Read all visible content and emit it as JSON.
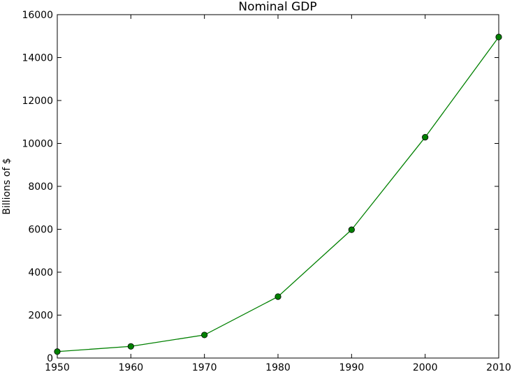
{
  "chart_data": {
    "type": "line",
    "title": "Nominal GDP",
    "xlabel": "",
    "ylabel": "Billions of $",
    "x": [
      1950,
      1960,
      1970,
      1980,
      1990,
      2000,
      2010
    ],
    "series": [
      {
        "values": [
          300.2,
          543.3,
          1075.9,
          2862.5,
          5979.6,
          10289.7,
          14958.3
        ],
        "color": "#008000",
        "marker": "circle"
      }
    ],
    "xlim": [
      1950,
      2010
    ],
    "ylim": [
      0,
      16000
    ],
    "xticks": [
      "1950",
      "1960",
      "1970",
      "1980",
      "1990",
      "2000",
      "2010"
    ],
    "yticks": [
      "0",
      "2000",
      "4000",
      "6000",
      "8000",
      "10000",
      "12000",
      "14000",
      "16000"
    ],
    "grid": false,
    "legend": "none"
  }
}
